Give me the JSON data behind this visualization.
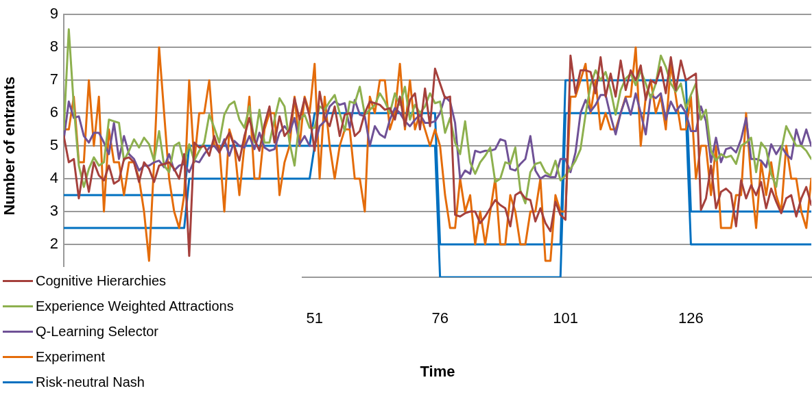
{
  "chart_data": {
    "type": "line",
    "xlabel": "Time",
    "ylabel": "Number of entrants",
    "x": [
      1,
      2,
      3,
      4,
      5,
      6,
      7,
      8,
      9,
      10,
      11,
      12,
      13,
      14,
      15,
      16,
      17,
      18,
      19,
      20,
      21,
      22,
      23,
      24,
      25,
      26,
      27,
      28,
      29,
      30,
      31,
      32,
      33,
      34,
      35,
      36,
      37,
      38,
      39,
      40,
      41,
      42,
      43,
      44,
      45,
      46,
      47,
      48,
      49,
      50,
      51,
      52,
      53,
      54,
      55,
      56,
      57,
      58,
      59,
      60,
      61,
      62,
      63,
      64,
      65,
      66,
      67,
      68,
      69,
      70,
      71,
      72,
      73,
      74,
      75,
      76,
      77,
      78,
      79,
      80,
      81,
      82,
      83,
      84,
      85,
      86,
      87,
      88,
      89,
      90,
      91,
      92,
      93,
      94,
      95,
      96,
      97,
      98,
      99,
      100,
      101,
      102,
      103,
      104,
      105,
      106,
      107,
      108,
      109,
      110,
      111,
      112,
      113,
      114,
      115,
      116,
      117,
      118,
      119,
      120,
      121,
      122,
      123,
      124,
      125,
      126,
      127,
      128,
      129,
      130,
      131,
      132,
      133,
      134,
      135,
      136,
      137,
      138,
      139,
      140,
      141,
      142,
      143,
      144,
      145,
      146,
      147,
      148,
      149,
      150
    ],
    "series": [
      {
        "name": "Cognitive Hierarchies",
        "color": "#a5403c",
        "values": [
          5.3,
          4.5,
          4.6,
          3.4,
          4.4,
          3.6,
          4.5,
          4.1,
          3.95,
          4.4,
          3.85,
          3.95,
          4.6,
          4.65,
          4.5,
          3.9,
          4.5,
          4.3,
          3.9,
          4.4,
          4.45,
          4.5,
          4.3,
          4.0,
          4.75,
          1.65,
          5.1,
          4.95,
          5.0,
          4.7,
          5.3,
          4.8,
          5.1,
          5.4,
          5.0,
          4.55,
          5.3,
          5.85,
          5.2,
          4.85,
          5.65,
          6.2,
          5.1,
          5.9,
          5.3,
          5.5,
          6.45,
          5.8,
          6.45,
          5.9,
          4.85,
          6.65,
          5.85,
          5.6,
          6.2,
          5.3,
          5.95,
          6.0,
          5.3,
          5.45,
          6.0,
          6.35,
          6.3,
          6.25,
          6.1,
          6.15,
          5.8,
          6.5,
          5.6,
          6.4,
          6.6,
          5.5,
          6.75,
          5.6,
          7.35,
          6.9,
          6.45,
          6.5,
          2.9,
          2.85,
          2.95,
          3.0,
          3.0,
          2.65,
          2.85,
          3.1,
          3.35,
          3.2,
          3.1,
          2.55,
          3.5,
          3.6,
          3.4,
          3.35,
          2.7,
          3.1,
          2.65,
          2.4,
          3.3,
          2.9,
          2.75,
          7.75,
          6.6,
          7.3,
          7.3,
          7.25,
          6.6,
          7.7,
          6.5,
          7.2,
          6.5,
          7.6,
          6.7,
          7.3,
          7.0,
          7.45,
          6.4,
          7.0,
          6.9,
          7.4,
          6.6,
          7.7,
          6.7,
          7.6,
          7.0,
          7.1,
          7.2,
          3.05,
          3.4,
          4.4,
          3.1,
          3.6,
          3.7,
          3.55,
          2.55,
          3.95,
          3.4,
          3.8,
          3.5,
          3.9,
          3.1,
          3.7,
          3.3,
          2.95,
          3.4,
          3.5,
          2.85,
          3.4,
          3.75,
          3.2
        ]
      },
      {
        "name": "Experience Weighted Attractions",
        "color": "#8db04e",
        "values": [
          5.5,
          8.55,
          6.2,
          4.4,
          3.75,
          4.3,
          4.65,
          4.4,
          4.5,
          5.8,
          5.75,
          5.7,
          4.55,
          4.85,
          5.2,
          4.95,
          5.25,
          5.05,
          4.55,
          5.45,
          4.4,
          4.2,
          5.0,
          5.1,
          4.5,
          5.05,
          4.55,
          4.85,
          5.1,
          5.95,
          5.55,
          5.1,
          5.95,
          6.25,
          6.35,
          5.8,
          5.55,
          6.2,
          5.1,
          6.1,
          5.1,
          5.1,
          5.8,
          6.45,
          6.2,
          5.1,
          4.4,
          5.8,
          5.95,
          5.55,
          5.55,
          6.2,
          6.1,
          6.35,
          6.55,
          6.0,
          5.45,
          6.35,
          6.3,
          6.8,
          5.95,
          6.1,
          6.25,
          6.6,
          6.35,
          6.0,
          6.6,
          6.25,
          6.8,
          5.8,
          6.25,
          6.0,
          6.2,
          6.6,
          6.3,
          6.35,
          5.4,
          5.85,
          5.1,
          4.75,
          5.75,
          4.5,
          4.15,
          4.5,
          4.7,
          4.95,
          3.9,
          4.0,
          4.5,
          4.45,
          4.95,
          3.65,
          3.25,
          4.2,
          4.45,
          4.5,
          4.2,
          4.1,
          4.55,
          3.95,
          4.1,
          4.3,
          4.55,
          4.9,
          5.95,
          6.85,
          7.3,
          7.0,
          7.25,
          6.7,
          5.95,
          6.7,
          7.05,
          7.2,
          6.85,
          7.3,
          6.9,
          6.45,
          6.9,
          7.75,
          7.4,
          6.9,
          6.65,
          6.9,
          6.15,
          6.55,
          6.9,
          5.8,
          6.1,
          4.85,
          4.55,
          4.75,
          4.65,
          4.7,
          4.45,
          5.0,
          5.1,
          5.25,
          4.2,
          5.1,
          4.9,
          4.15,
          3.75,
          4.85,
          5.6,
          5.3,
          5.0,
          5.0,
          4.85,
          4.6
        ]
      },
      {
        "name": "Q-Learning Selector",
        "color": "#6f5196",
        "values": [
          5.2,
          6.35,
          5.85,
          5.9,
          5.3,
          5.1,
          5.4,
          5.4,
          5.1,
          4.75,
          5.7,
          4.6,
          5.3,
          4.75,
          4.6,
          4.25,
          4.4,
          4.4,
          4.5,
          4.55,
          4.35,
          4.75,
          4.25,
          4.4,
          4.45,
          4.2,
          4.55,
          4.5,
          4.75,
          4.95,
          5.0,
          4.8,
          5.2,
          4.7,
          5.15,
          5.0,
          4.95,
          5.3,
          4.9,
          5.4,
          4.95,
          4.85,
          4.9,
          5.4,
          5.6,
          5.4,
          5.85,
          5.05,
          5.3,
          5.0,
          5.0,
          5.6,
          5.75,
          6.2,
          6.35,
          6.25,
          6.3,
          5.55,
          6.4,
          5.95,
          5.9,
          5.0,
          5.6,
          5.35,
          5.25,
          5.8,
          6.15,
          6.0,
          5.75,
          5.6,
          5.8,
          5.95,
          5.7,
          5.7,
          5.75,
          6.0,
          6.5,
          6.35,
          5.7,
          4.0,
          4.25,
          4.15,
          4.85,
          4.8,
          4.85,
          4.85,
          4.9,
          5.2,
          5.15,
          4.3,
          4.25,
          4.45,
          4.6,
          5.3,
          4.25,
          4.0,
          4.1,
          4.05,
          4.05,
          4.6,
          4.6,
          4.2,
          4.8,
          6.0,
          6.4,
          6.05,
          6.25,
          6.55,
          6.55,
          5.9,
          5.35,
          6.0,
          6.45,
          5.95,
          6.6,
          6.0,
          5.35,
          6.55,
          6.45,
          6.6,
          5.8,
          6.35,
          6.05,
          6.25,
          6.0,
          5.45,
          5.45,
          6.2,
          5.75,
          4.5,
          5.25,
          4.5,
          4.9,
          4.95,
          4.8,
          5.2,
          5.85,
          4.6,
          4.6,
          4.55,
          4.35,
          5.05,
          4.75,
          5.0,
          4.75,
          4.6,
          5.5,
          5.0,
          5.5,
          5.0
        ]
      },
      {
        "name": "Experiment",
        "color": "#e46c0a",
        "values": [
          5.5,
          5.5,
          6.5,
          4.5,
          4.5,
          7.0,
          5.0,
          6.5,
          3.0,
          5.5,
          4.5,
          4.5,
          3.5,
          4.5,
          4.5,
          4.0,
          3.0,
          1.5,
          4.5,
          8.0,
          6.0,
          4.0,
          3.0,
          2.5,
          3.5,
          7.0,
          4.5,
          6.0,
          6.0,
          7.0,
          5.0,
          5.0,
          3.0,
          5.5,
          5.0,
          3.5,
          5.0,
          6.5,
          4.0,
          4.0,
          5.5,
          6.0,
          6.0,
          3.5,
          4.5,
          5.0,
          6.5,
          5.0,
          6.5,
          6.0,
          7.5,
          4.0,
          6.5,
          5.0,
          4.0,
          5.0,
          5.5,
          5.5,
          4.0,
          4.0,
          3.0,
          6.5,
          6.0,
          7.0,
          7.0,
          5.5,
          6.0,
          7.5,
          5.5,
          7.0,
          5.5,
          6.0,
          5.5,
          5.0,
          5.5,
          5.0,
          3.5,
          2.5,
          2.5,
          4.0,
          3.0,
          3.5,
          2.0,
          3.0,
          2.0,
          3.0,
          4.0,
          2.0,
          2.0,
          3.5,
          3.0,
          2.0,
          2.0,
          3.0,
          3.0,
          4.0,
          1.5,
          1.5,
          3.5,
          3.0,
          3.0,
          6.5,
          6.5,
          7.0,
          7.5,
          6.0,
          7.0,
          5.5,
          6.0,
          5.5,
          5.5,
          6.0,
          6.5,
          6.5,
          8.0,
          5.0,
          6.5,
          7.0,
          6.0,
          6.5,
          5.5,
          7.5,
          6.5,
          5.5,
          5.5,
          6.5,
          4.0,
          5.0,
          5.0,
          3.5,
          5.0,
          2.5,
          2.5,
          2.5,
          3.5,
          3.5,
          6.0,
          4.0,
          2.5,
          4.5,
          3.5,
          4.5,
          3.5,
          3.0,
          5.0,
          4.0,
          4.0,
          3.0,
          2.5,
          4.0
        ]
      },
      {
        "name": "Risk-neutral Nash",
        "color": "#0070c0",
        "x": [
          1,
          25,
          26,
          50,
          51,
          75,
          76,
          100,
          101,
          125,
          126,
          150
        ],
        "values": [
          3.5,
          3.5,
          5,
          5,
          6,
          6,
          2,
          2,
          7,
          7,
          3,
          3
        ]
      },
      {
        "color": "#0070c0",
        "x": [
          1,
          25,
          26,
          50,
          51,
          75,
          76,
          100,
          101,
          125,
          126,
          150
        ],
        "values": [
          2.5,
          2.5,
          4,
          4,
          5,
          5,
          1,
          1,
          6,
          6,
          2,
          2
        ]
      }
    ],
    "xlim": [
      1,
      150
    ],
    "xticks": [
      51,
      76,
      101,
      126
    ],
    "ylim": [
      1,
      9
    ],
    "yticks": [
      {
        "value": 1,
        "label": null
      },
      2,
      3,
      4,
      5,
      6,
      7,
      8,
      9
    ],
    "grid": "y",
    "legend": "bottom left",
    "marker": "none",
    "line_style": "solid"
  }
}
